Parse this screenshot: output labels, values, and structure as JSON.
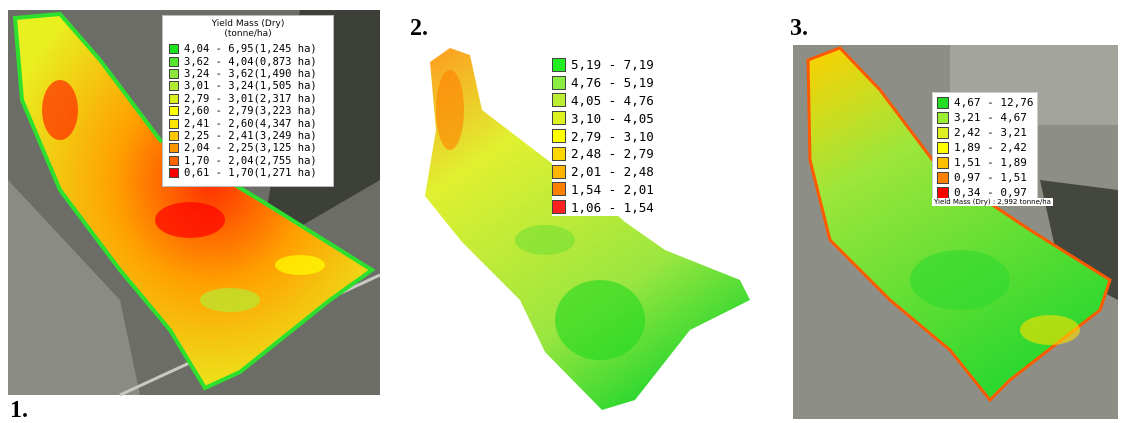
{
  "panels": [
    {
      "label": "1.",
      "legend": {
        "title": "Yield Mass (Dry)",
        "unit": "(tonne/ha)",
        "items": [
          {
            "text": "4,04 - 6,95(1,245 ha)",
            "color": "#1ee11e"
          },
          {
            "text": "3,62 - 4,04(0,873 ha)",
            "color": "#55e62d"
          },
          {
            "text": "3,24 - 3,62(1,490 ha)",
            "color": "#8ce63c"
          },
          {
            "text": "3,01 - 3,24(1,505 ha)",
            "color": "#b4eb32"
          },
          {
            "text": "2,79 - 3,01(2,317 ha)",
            "color": "#dcf01e"
          },
          {
            "text": "2,60 - 2,79(3,223 ha)",
            "color": "#ffff00"
          },
          {
            "text": "2,41 - 2,60(4,347 ha)",
            "color": "#ffe600"
          },
          {
            "text": "2,25 - 2,41(3,249 ha)",
            "color": "#ffc800"
          },
          {
            "text": "2,04 - 2,25(3,125 ha)",
            "color": "#ff9600"
          },
          {
            "text": "1,70 - 2,04(2,755 ha)",
            "color": "#ff6400"
          },
          {
            "text": "0,61 - 1,70(1,271 ha)",
            "color": "#ff0000"
          }
        ]
      }
    },
    {
      "label": "2.",
      "legend": {
        "items": [
          {
            "text": "5,19 - 7,19",
            "color": "#22ee22"
          },
          {
            "text": "4,76 - 5,19",
            "color": "#88ee44"
          },
          {
            "text": "4,05 - 4,76",
            "color": "#bbee33"
          },
          {
            "text": "3,10 - 4,05",
            "color": "#ddf020"
          },
          {
            "text": "2,79 - 3,10",
            "color": "#ffff00"
          },
          {
            "text": "2,48 - 2,79",
            "color": "#ffd700"
          },
          {
            "text": "2,01 - 2,48",
            "color": "#ffb400"
          },
          {
            "text": "1,54 - 2,01",
            "color": "#ff8000"
          },
          {
            "text": "1,06 - 1,54",
            "color": "#ff2020"
          }
        ]
      }
    },
    {
      "label": "3.",
      "legend": {
        "items": [
          {
            "text": "4,67 - 12,76",
            "color": "#22dd22"
          },
          {
            "text": "3,21 - 4,67",
            "color": "#99ee33"
          },
          {
            "text": "2,42 - 3,21",
            "color": "#ddf020"
          },
          {
            "text": "1,89 - 2,42",
            "color": "#ffff00"
          },
          {
            "text": "1,51 - 1,89",
            "color": "#ffc000"
          },
          {
            "text": "0,97 - 1,51",
            "color": "#ff8000"
          },
          {
            "text": "0,34 - 0,97",
            "color": "#ff0000"
          }
        ]
      },
      "caption": "Yield Mass (Dry) : 2,992 tonne/ha"
    }
  ]
}
